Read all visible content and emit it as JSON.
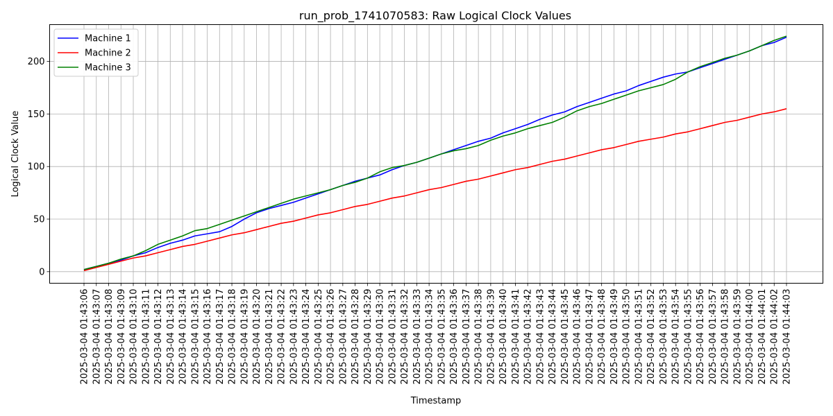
{
  "chart_data": {
    "type": "line",
    "title": "run_prob_1741070583: Raw Logical Clock Values",
    "xlabel": "Timestamp",
    "ylabel": "Logical Clock Value",
    "x": [
      "2025-03-04 01:43:06",
      "2025-03-04 01:43:07",
      "2025-03-04 01:43:08",
      "2025-03-04 01:43:09",
      "2025-03-04 01:43:10",
      "2025-03-04 01:43:11",
      "2025-03-04 01:43:12",
      "2025-03-04 01:43:13",
      "2025-03-04 01:43:14",
      "2025-03-04 01:43:15",
      "2025-03-04 01:43:16",
      "2025-03-04 01:43:17",
      "2025-03-04 01:43:18",
      "2025-03-04 01:43:19",
      "2025-03-04 01:43:20",
      "2025-03-04 01:43:21",
      "2025-03-04 01:43:22",
      "2025-03-04 01:43:23",
      "2025-03-04 01:43:24",
      "2025-03-04 01:43:25",
      "2025-03-04 01:43:26",
      "2025-03-04 01:43:27",
      "2025-03-04 01:43:28",
      "2025-03-04 01:43:29",
      "2025-03-04 01:43:30",
      "2025-03-04 01:43:31",
      "2025-03-04 01:43:32",
      "2025-03-04 01:43:33",
      "2025-03-04 01:43:34",
      "2025-03-04 01:43:35",
      "2025-03-04 01:43:36",
      "2025-03-04 01:43:37",
      "2025-03-04 01:43:38",
      "2025-03-04 01:43:39",
      "2025-03-04 01:43:40",
      "2025-03-04 01:43:41",
      "2025-03-04 01:43:42",
      "2025-03-04 01:43:43",
      "2025-03-04 01:43:44",
      "2025-03-04 01:43:45",
      "2025-03-04 01:43:46",
      "2025-03-04 01:43:47",
      "2025-03-04 01:43:48",
      "2025-03-04 01:43:49",
      "2025-03-04 01:43:50",
      "2025-03-04 01:43:51",
      "2025-03-04 01:43:52",
      "2025-03-04 01:43:53",
      "2025-03-04 01:43:54",
      "2025-03-04 01:43:55",
      "2025-03-04 01:43:56",
      "2025-03-04 01:43:57",
      "2025-03-04 01:43:58",
      "2025-03-04 01:43:59",
      "2025-03-04 01:44:00",
      "2025-03-04 01:44:01",
      "2025-03-04 01:44:02",
      "2025-03-04 01:44:03"
    ],
    "series": [
      {
        "name": "Machine 1",
        "color": "#0000ff",
        "values": [
          2,
          5,
          8,
          11,
          15,
          18,
          23,
          27,
          30,
          34,
          36,
          38,
          43,
          50,
          56,
          60,
          63,
          66,
          70,
          74,
          78,
          82,
          86,
          89,
          92,
          97,
          101,
          104,
          108,
          112,
          116,
          120,
          124,
          127,
          132,
          136,
          140,
          145,
          149,
          152,
          157,
          161,
          165,
          169,
          172,
          177,
          181,
          185,
          188,
          190,
          194,
          198,
          202,
          206,
          210,
          215,
          218,
          223
        ]
      },
      {
        "name": "Machine 2",
        "color": "#ff0000",
        "values": [
          1,
          4,
          7,
          10,
          13,
          15,
          18,
          21,
          24,
          26,
          29,
          32,
          35,
          37,
          40,
          43,
          46,
          48,
          51,
          54,
          56,
          59,
          62,
          64,
          67,
          70,
          72,
          75,
          78,
          80,
          83,
          86,
          88,
          91,
          94,
          97,
          99,
          102,
          105,
          107,
          110,
          113,
          116,
          118,
          121,
          124,
          126,
          128,
          131,
          133,
          136,
          139,
          142,
          144,
          147,
          150,
          152,
          155
        ]
      },
      {
        "name": "Machine 3",
        "color": "#008000",
        "values": [
          2,
          5,
          8,
          12,
          15,
          20,
          26,
          30,
          34,
          39,
          41,
          45,
          49,
          53,
          57,
          61,
          65,
          69,
          72,
          75,
          78,
          82,
          85,
          89,
          95,
          99,
          101,
          104,
          108,
          112,
          115,
          117,
          120,
          125,
          129,
          132,
          136,
          139,
          142,
          147,
          153,
          157,
          160,
          164,
          168,
          172,
          175,
          178,
          183,
          190,
          195,
          199,
          203,
          206,
          210,
          215,
          220,
          224
        ]
      }
    ],
    "yticks": [
      0,
      50,
      100,
      150,
      200
    ],
    "ylim": [
      -11,
      235
    ],
    "grid": true,
    "legend_position": "upper-left"
  }
}
